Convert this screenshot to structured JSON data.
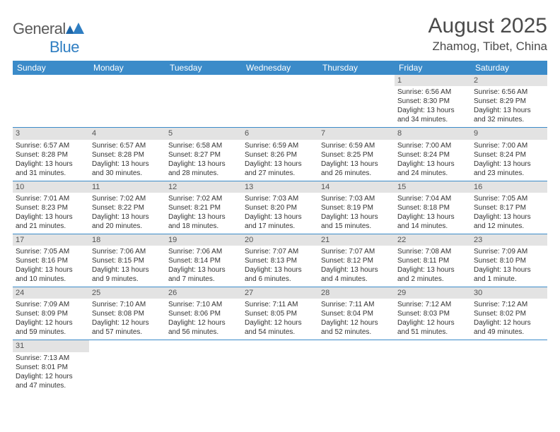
{
  "logo": {
    "text1": "General",
    "text2": "Blue"
  },
  "title": "August 2025",
  "location": "Zhamog, Tibet, China",
  "colors": {
    "header_bg": "#3b8bc9",
    "header_text": "#ffffff",
    "daynum_bg": "#e3e3e3",
    "daynum_text": "#555555",
    "divider": "#3b8bc9",
    "body_text": "#333333",
    "title_text": "#4a4a4a",
    "logo_gray": "#5a5a5a",
    "logo_blue": "#2f7ec2"
  },
  "table": {
    "cell_fontsize": 10,
    "header_fontsize": 12,
    "title_fontsize": 30,
    "location_fontsize": 17
  },
  "day_headers": [
    "Sunday",
    "Monday",
    "Tuesday",
    "Wednesday",
    "Thursday",
    "Friday",
    "Saturday"
  ],
  "weeks": [
    [
      null,
      null,
      null,
      null,
      null,
      {
        "n": "1",
        "sr": "Sunrise: 6:56 AM",
        "ss": "Sunset: 8:30 PM",
        "dl": "Daylight: 13 hours and 34 minutes."
      },
      {
        "n": "2",
        "sr": "Sunrise: 6:56 AM",
        "ss": "Sunset: 8:29 PM",
        "dl": "Daylight: 13 hours and 32 minutes."
      }
    ],
    [
      {
        "n": "3",
        "sr": "Sunrise: 6:57 AM",
        "ss": "Sunset: 8:28 PM",
        "dl": "Daylight: 13 hours and 31 minutes."
      },
      {
        "n": "4",
        "sr": "Sunrise: 6:57 AM",
        "ss": "Sunset: 8:28 PM",
        "dl": "Daylight: 13 hours and 30 minutes."
      },
      {
        "n": "5",
        "sr": "Sunrise: 6:58 AM",
        "ss": "Sunset: 8:27 PM",
        "dl": "Daylight: 13 hours and 28 minutes."
      },
      {
        "n": "6",
        "sr": "Sunrise: 6:59 AM",
        "ss": "Sunset: 8:26 PM",
        "dl": "Daylight: 13 hours and 27 minutes."
      },
      {
        "n": "7",
        "sr": "Sunrise: 6:59 AM",
        "ss": "Sunset: 8:25 PM",
        "dl": "Daylight: 13 hours and 26 minutes."
      },
      {
        "n": "8",
        "sr": "Sunrise: 7:00 AM",
        "ss": "Sunset: 8:24 PM",
        "dl": "Daylight: 13 hours and 24 minutes."
      },
      {
        "n": "9",
        "sr": "Sunrise: 7:00 AM",
        "ss": "Sunset: 8:24 PM",
        "dl": "Daylight: 13 hours and 23 minutes."
      }
    ],
    [
      {
        "n": "10",
        "sr": "Sunrise: 7:01 AM",
        "ss": "Sunset: 8:23 PM",
        "dl": "Daylight: 13 hours and 21 minutes."
      },
      {
        "n": "11",
        "sr": "Sunrise: 7:02 AM",
        "ss": "Sunset: 8:22 PM",
        "dl": "Daylight: 13 hours and 20 minutes."
      },
      {
        "n": "12",
        "sr": "Sunrise: 7:02 AM",
        "ss": "Sunset: 8:21 PM",
        "dl": "Daylight: 13 hours and 18 minutes."
      },
      {
        "n": "13",
        "sr": "Sunrise: 7:03 AM",
        "ss": "Sunset: 8:20 PM",
        "dl": "Daylight: 13 hours and 17 minutes."
      },
      {
        "n": "14",
        "sr": "Sunrise: 7:03 AM",
        "ss": "Sunset: 8:19 PM",
        "dl": "Daylight: 13 hours and 15 minutes."
      },
      {
        "n": "15",
        "sr": "Sunrise: 7:04 AM",
        "ss": "Sunset: 8:18 PM",
        "dl": "Daylight: 13 hours and 14 minutes."
      },
      {
        "n": "16",
        "sr": "Sunrise: 7:05 AM",
        "ss": "Sunset: 8:17 PM",
        "dl": "Daylight: 13 hours and 12 minutes."
      }
    ],
    [
      {
        "n": "17",
        "sr": "Sunrise: 7:05 AM",
        "ss": "Sunset: 8:16 PM",
        "dl": "Daylight: 13 hours and 10 minutes."
      },
      {
        "n": "18",
        "sr": "Sunrise: 7:06 AM",
        "ss": "Sunset: 8:15 PM",
        "dl": "Daylight: 13 hours and 9 minutes."
      },
      {
        "n": "19",
        "sr": "Sunrise: 7:06 AM",
        "ss": "Sunset: 8:14 PM",
        "dl": "Daylight: 13 hours and 7 minutes."
      },
      {
        "n": "20",
        "sr": "Sunrise: 7:07 AM",
        "ss": "Sunset: 8:13 PM",
        "dl": "Daylight: 13 hours and 6 minutes."
      },
      {
        "n": "21",
        "sr": "Sunrise: 7:07 AM",
        "ss": "Sunset: 8:12 PM",
        "dl": "Daylight: 13 hours and 4 minutes."
      },
      {
        "n": "22",
        "sr": "Sunrise: 7:08 AM",
        "ss": "Sunset: 8:11 PM",
        "dl": "Daylight: 13 hours and 2 minutes."
      },
      {
        "n": "23",
        "sr": "Sunrise: 7:09 AM",
        "ss": "Sunset: 8:10 PM",
        "dl": "Daylight: 13 hours and 1 minute."
      }
    ],
    [
      {
        "n": "24",
        "sr": "Sunrise: 7:09 AM",
        "ss": "Sunset: 8:09 PM",
        "dl": "Daylight: 12 hours and 59 minutes."
      },
      {
        "n": "25",
        "sr": "Sunrise: 7:10 AM",
        "ss": "Sunset: 8:08 PM",
        "dl": "Daylight: 12 hours and 57 minutes."
      },
      {
        "n": "26",
        "sr": "Sunrise: 7:10 AM",
        "ss": "Sunset: 8:06 PM",
        "dl": "Daylight: 12 hours and 56 minutes."
      },
      {
        "n": "27",
        "sr": "Sunrise: 7:11 AM",
        "ss": "Sunset: 8:05 PM",
        "dl": "Daylight: 12 hours and 54 minutes."
      },
      {
        "n": "28",
        "sr": "Sunrise: 7:11 AM",
        "ss": "Sunset: 8:04 PM",
        "dl": "Daylight: 12 hours and 52 minutes."
      },
      {
        "n": "29",
        "sr": "Sunrise: 7:12 AM",
        "ss": "Sunset: 8:03 PM",
        "dl": "Daylight: 12 hours and 51 minutes."
      },
      {
        "n": "30",
        "sr": "Sunrise: 7:12 AM",
        "ss": "Sunset: 8:02 PM",
        "dl": "Daylight: 12 hours and 49 minutes."
      }
    ],
    [
      {
        "n": "31",
        "sr": "Sunrise: 7:13 AM",
        "ss": "Sunset: 8:01 PM",
        "dl": "Daylight: 12 hours and 47 minutes."
      },
      null,
      null,
      null,
      null,
      null,
      null
    ]
  ]
}
